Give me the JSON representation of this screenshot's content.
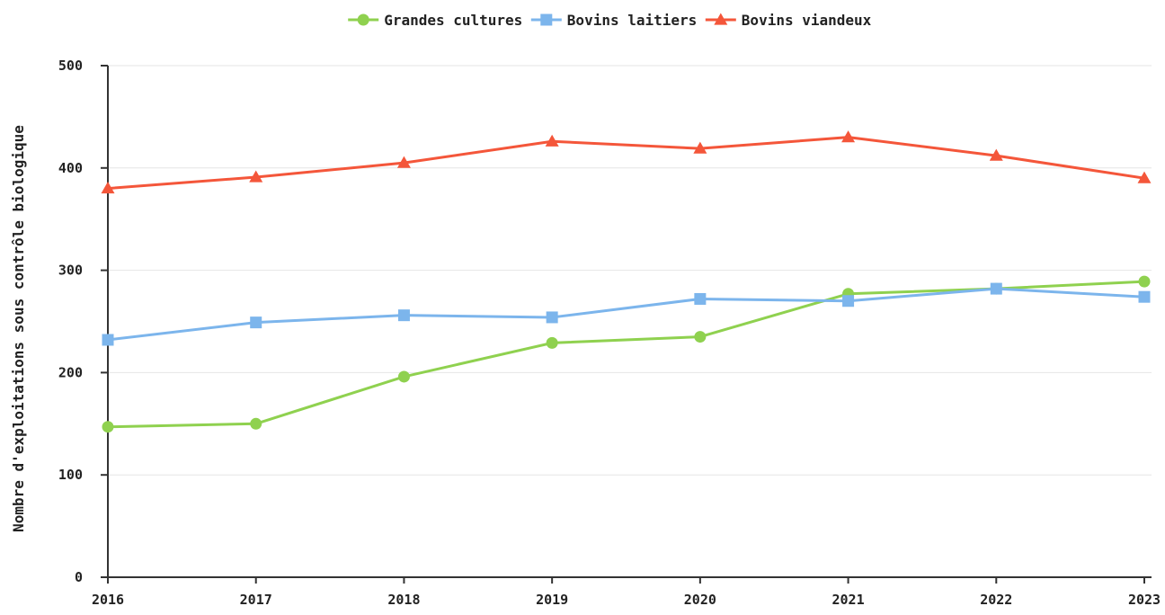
{
  "chart_data": {
    "type": "line",
    "title": "",
    "xlabel": "",
    "ylabel": "Nombre d'exploitations sous contrôle biologique",
    "x": [
      "2016",
      "2017",
      "2018",
      "2019",
      "2020",
      "2021",
      "2022",
      "2023"
    ],
    "ylim": [
      0,
      500
    ],
    "yticks": [
      "0",
      "100",
      "200",
      "300",
      "400",
      "500"
    ],
    "grid": true,
    "legend_position": "top-center",
    "series": [
      {
        "name": "Grandes cultures",
        "color": "#8fd14f",
        "marker": "circle",
        "values": [
          147,
          150,
          196,
          229,
          235,
          277,
          282,
          289
        ]
      },
      {
        "name": "Bovins laitiers",
        "color": "#7cb5ec",
        "marker": "square",
        "values": [
          232,
          249,
          256,
          254,
          272,
          270,
          282,
          274
        ]
      },
      {
        "name": "Bovins viandeux",
        "color": "#f4563a",
        "marker": "triangle",
        "values": [
          380,
          391,
          405,
          426,
          419,
          430,
          412,
          390
        ]
      }
    ]
  }
}
